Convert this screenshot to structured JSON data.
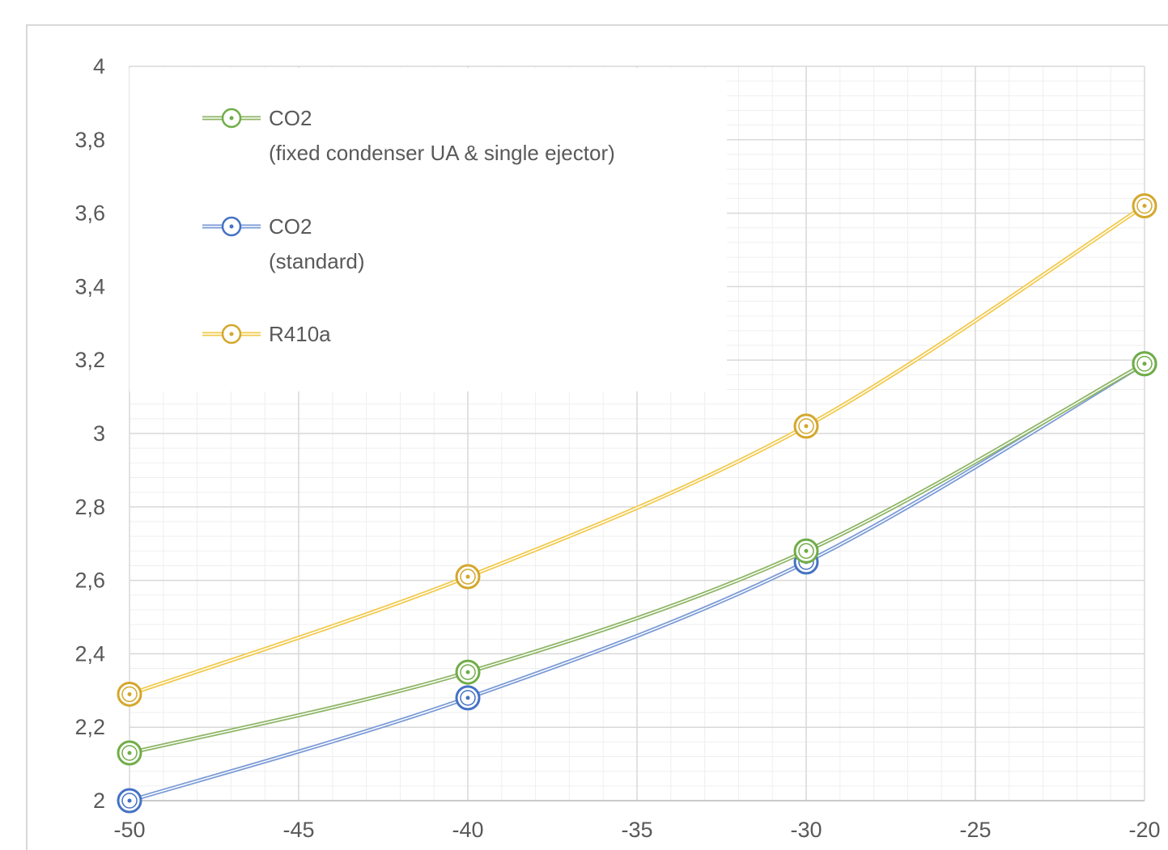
{
  "chart_data": {
    "type": "line",
    "title": "",
    "xlabel": "",
    "ylabel": "",
    "xlim": [
      -50,
      -20
    ],
    "ylim": [
      2,
      4
    ],
    "x_ticks": [
      "-50",
      "-45",
      "-40",
      "-35",
      "-30",
      "-25",
      "-20"
    ],
    "y_ticks": [
      "2",
      "2,2",
      "2,4",
      "2,6",
      "2,8",
      "3",
      "3,2",
      "3,4",
      "3,6",
      "3,8",
      "4"
    ],
    "grid": true,
    "legend_position": "top-left",
    "series": [
      {
        "name": "CO2",
        "name_line2": "(fixed condenser UA & single ejector)",
        "color": "#8db565",
        "marker_color": "#70ad47",
        "x": [
          -50,
          -40,
          -30,
          -20
        ],
        "y": [
          2.13,
          2.35,
          2.68,
          3.19
        ]
      },
      {
        "name": "CO2",
        "name_line2": "(standard)",
        "color": "#7a9ad6",
        "marker_color": "#4472c4",
        "x": [
          -50,
          -40,
          -30,
          -20
        ],
        "y": [
          2.0,
          2.28,
          2.65,
          3.19
        ]
      },
      {
        "name": "R410a",
        "name_line2": "",
        "color": "#f2c94c",
        "marker_color": "#d4a72c",
        "x": [
          -50,
          -40,
          -30,
          -20
        ],
        "y": [
          2.29,
          2.61,
          3.02,
          3.62
        ]
      }
    ]
  }
}
